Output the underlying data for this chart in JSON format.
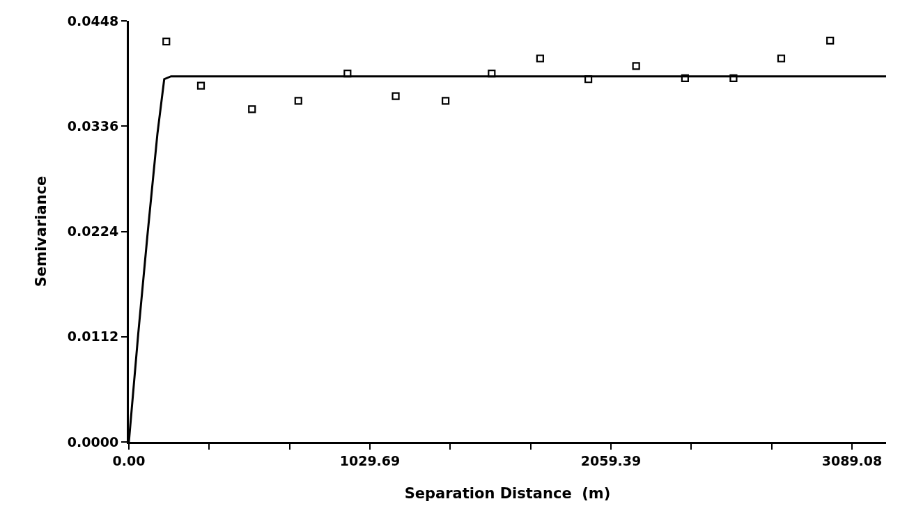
{
  "chart_data": {
    "type": "scatter",
    "xlabel": "Separation Distance  (m)",
    "ylabel": "Semivariance",
    "xlim": [
      0,
      3235
    ],
    "ylim": [
      0,
      0.0448
    ],
    "xticks": [
      {
        "value": 0,
        "label": "0.00"
      },
      {
        "value": 343.23,
        "label": null
      },
      {
        "value": 686.46,
        "label": null
      },
      {
        "value": 1029.69,
        "label": "1029.69"
      },
      {
        "value": 1372.92,
        "label": null
      },
      {
        "value": 1716.15,
        "label": null
      },
      {
        "value": 2059.39,
        "label": "2059.39"
      },
      {
        "value": 2402.62,
        "label": null
      },
      {
        "value": 2745.85,
        "label": null
      },
      {
        "value": 3089.08,
        "label": "3089.08"
      }
    ],
    "yticks": [
      {
        "value": 0,
        "label": "0.0000"
      },
      {
        "value": 0.0112,
        "label": "0.0112"
      },
      {
        "value": 0.0224,
        "label": "0.0224"
      },
      {
        "value": 0.0336,
        "label": "0.0336"
      },
      {
        "value": 0.0448,
        "label": "0.0448"
      }
    ],
    "grid": false,
    "series": [
      {
        "type": "scatter",
        "color": "#000000",
        "marker": "square",
        "x": [
          160,
          308,
          526,
          724,
          934,
          1140,
          1353,
          1550,
          1757,
          1963,
          2167,
          2376,
          2583,
          2787,
          2996
        ],
        "values": [
          0.0426,
          0.0379,
          0.0354,
          0.0363,
          0.0392,
          0.0368,
          0.0363,
          0.0392,
          0.0408,
          0.0386,
          0.04,
          0.0387,
          0.0387,
          0.0408,
          0.0427
        ]
      },
      {
        "type": "line",
        "color": "#000000",
        "marker": "none",
        "line_style": "solid",
        "x": [
          0,
          40,
          79,
          122,
          151,
          180,
          3235
        ],
        "values": [
          0,
          0.0115,
          0.0219,
          0.0328,
          0.0386,
          0.0389,
          0.0389
        ]
      }
    ]
  }
}
